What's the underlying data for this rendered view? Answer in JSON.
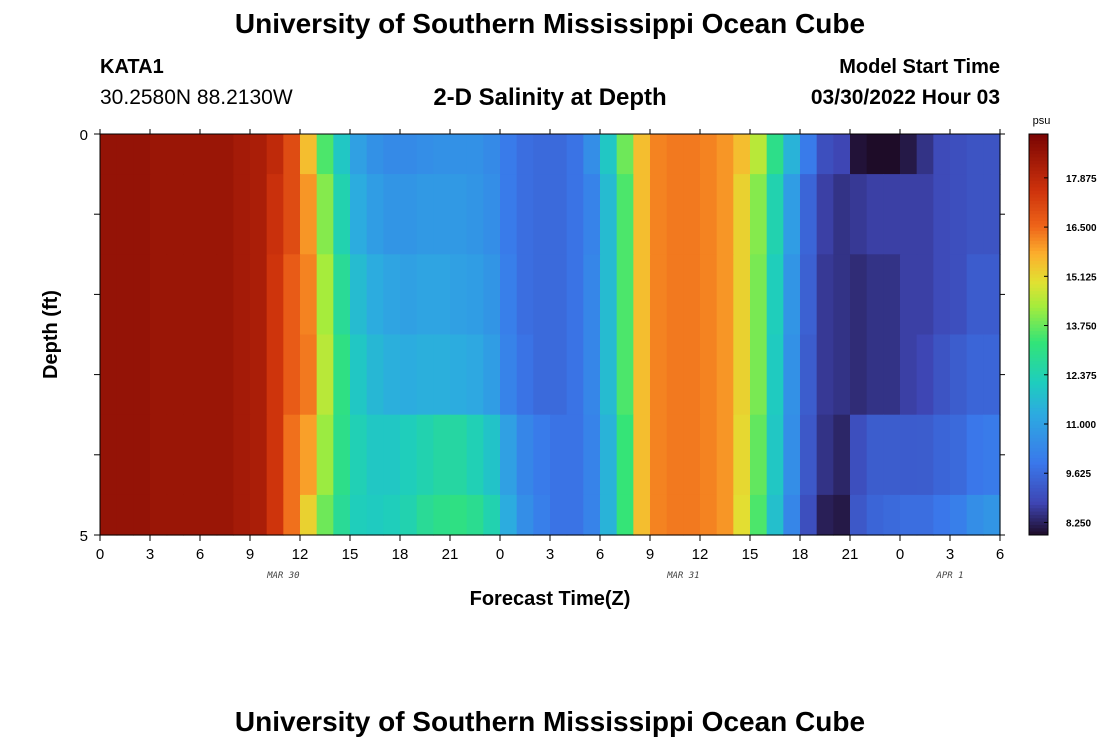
{
  "header": {
    "title": "University of Southern Mississippi Ocean Cube",
    "station_id": "KATA1",
    "station_coords": "30.2580N  88.2130W",
    "plot_title": "2-D Salinity at Depth",
    "model_start_label": "Model Start Time",
    "model_start_value": "03/30/2022 Hour 03"
  },
  "footer": {
    "title": "University of Southern Mississippi Ocean Cube"
  },
  "chart_data": {
    "type": "heatmap",
    "title": "2-D Salinity at Depth",
    "xlabel": "Forecast Time(Z)",
    "ylabel": "Depth (ft)",
    "x_tick_labels": [
      "0",
      "3",
      "6",
      "9",
      "12",
      "15",
      "18",
      "21",
      "0",
      "3",
      "6",
      "9",
      "12",
      "15",
      "18",
      "21",
      "0",
      "3",
      "6"
    ],
    "x_date_labels": [
      {
        "hour_index": 11,
        "label": "MAR 30"
      },
      {
        "hour_index": 35,
        "label": "MAR 31"
      },
      {
        "hour_index": 51,
        "label": "APR 1"
      }
    ],
    "x_range_hours": [
      0,
      54
    ],
    "y_tick_labels": [
      "0",
      "5"
    ],
    "ylim": [
      0,
      5
    ],
    "colorbar": {
      "unit": "psu",
      "min": 7.9,
      "max": 19.1,
      "labels": [
        "17.875",
        "16.500",
        "15.125",
        "13.750",
        "12.375",
        "11.000",
        "9.625",
        "8.250"
      ],
      "label_values": [
        17.875,
        16.5,
        15.125,
        13.75,
        12.375,
        11.0,
        9.625,
        8.25
      ]
    },
    "depth_layers_ft": [
      0,
      0.5,
      1.5,
      2.5,
      3.5,
      4.5,
      5
    ],
    "time_hours": [
      0,
      1,
      2,
      3,
      4,
      5,
      6,
      7,
      8,
      9,
      10,
      11,
      12,
      13,
      14,
      15,
      16,
      17,
      18,
      19,
      20,
      21,
      22,
      23,
      24,
      25,
      26,
      27,
      28,
      29,
      30,
      31,
      32,
      33,
      34,
      35,
      36,
      37,
      38,
      39,
      40,
      41,
      42,
      43,
      44,
      45,
      46,
      47,
      48,
      49,
      50,
      51,
      52,
      53,
      54
    ],
    "surface_salinity": [
      18.6,
      18.6,
      18.6,
      18.5,
      18.5,
      18.5,
      18.5,
      18.5,
      18.3,
      18.2,
      17.8,
      17.0,
      15.5,
      13.5,
      12.0,
      11.0,
      10.6,
      10.4,
      10.4,
      10.5,
      10.6,
      10.6,
      10.6,
      10.4,
      10.0,
      9.7,
      9.6,
      9.6,
      9.8,
      10.5,
      12.0,
      13.8,
      15.5,
      16.2,
      16.3,
      16.3,
      16.2,
      16.0,
      15.5,
      14.5,
      13.0,
      11.5,
      10.0,
      9.0,
      8.8,
      8.0,
      7.9,
      7.9,
      8.1,
      8.5,
      8.9,
      9.0,
      9.1,
      9.1,
      9.1
    ],
    "layer_offsets": [
      [
        0,
        0,
        0,
        0,
        0,
        0,
        0,
        0,
        0,
        0,
        0,
        0,
        0,
        0,
        0,
        0,
        0,
        0,
        0,
        0,
        0,
        0,
        0,
        0,
        0,
        0,
        0,
        0,
        0,
        0,
        0,
        0,
        0,
        0,
        0,
        0,
        0,
        0,
        0,
        0,
        0,
        0,
        0,
        0,
        0,
        0,
        0,
        0,
        0,
        0,
        0,
        0,
        0,
        0,
        0
      ],
      [
        0,
        0,
        0,
        0,
        0,
        0,
        0,
        0,
        0,
        0,
        -0.2,
        0,
        0.5,
        0.5,
        0.4,
        0.3,
        0.3,
        0.3,
        0.3,
        0.3,
        0.2,
        0.2,
        0.1,
        0.1,
        0,
        0,
        0,
        0,
        0,
        -0.3,
        -0.3,
        -0.3,
        0,
        0,
        0,
        0,
        0,
        0,
        -0.3,
        -0.5,
        -0.6,
        -0.6,
        -0.5,
        -0.3,
        -0.3,
        0.6,
        0.8,
        0.8,
        0.6,
        0.2,
        0,
        0,
        0,
        0,
        0
      ],
      [
        0,
        0,
        0,
        0,
        0,
        0,
        0,
        0,
        0,
        0,
        -0.3,
        -0.3,
        0.7,
        0.8,
        0.8,
        0.7,
        0.7,
        0.7,
        0.6,
        0.6,
        0.5,
        0.4,
        0.3,
        0.3,
        0.1,
        0,
        0,
        0,
        0,
        -0.2,
        -0.3,
        -0.3,
        0,
        0,
        0,
        0,
        0,
        0,
        -0.3,
        -0.6,
        -0.8,
        -0.8,
        -0.6,
        -0.4,
        -0.3,
        0.4,
        0.6,
        0.6,
        0.6,
        0.2,
        0,
        0,
        0.2,
        0.2,
        0.2
      ],
      [
        0,
        0,
        0,
        0,
        0,
        0,
        0,
        0,
        0,
        0,
        -0.3,
        -0.3,
        0.8,
        1.0,
        1.1,
        1.0,
        1.0,
        1.0,
        0.9,
        0.9,
        0.8,
        0.7,
        0.6,
        0.5,
        0.2,
        0.1,
        0,
        0,
        0,
        -0.2,
        -0.3,
        -0.3,
        0,
        0,
        0,
        0,
        0,
        0,
        -0.3,
        -0.6,
        -0.9,
        -0.9,
        -0.7,
        -0.4,
        -0.3,
        0.4,
        0.6,
        0.6,
        0.6,
        0.3,
        0.2,
        0.3,
        0.4,
        0.4,
        0.4
      ],
      [
        0,
        0,
        0,
        0,
        0,
        0,
        0,
        0,
        0,
        0,
        -0.3,
        -0.6,
        0.4,
        0.7,
        1.0,
        1.3,
        1.4,
        1.6,
        1.8,
        1.9,
        2.0,
        2.0,
        1.7,
        1.5,
        1.0,
        0.6,
        0.4,
        0.2,
        0,
        -0.3,
        -0.5,
        -0.5,
        0,
        0,
        0,
        0,
        0,
        0,
        -0.4,
        -0.8,
        -1.0,
        -1.0,
        -0.8,
        -0.5,
        -0.5,
        1.0,
        1.4,
        1.4,
        1.2,
        0.8,
        0.6,
        0.6,
        0.8,
        0.9,
        1.0
      ],
      [
        0,
        0,
        0,
        0,
        0,
        0,
        0,
        0,
        0,
        0,
        -0.3,
        -0.6,
        -0.3,
        0.3,
        0.8,
        1.2,
        1.5,
        1.8,
        2.0,
        2.3,
        2.4,
        2.5,
        2.3,
        2.0,
        1.3,
        0.8,
        0.5,
        0.2,
        0,
        -0.3,
        -0.5,
        -0.5,
        0,
        0,
        0,
        0,
        0,
        0,
        -0.5,
        -1.0,
        -1.2,
        -1.2,
        -1.0,
        -0.8,
        -0.7,
        1.2,
        1.6,
        1.7,
        1.6,
        1.2,
        1.0,
        1.1,
        1.4,
        1.6,
        1.8
      ]
    ]
  }
}
